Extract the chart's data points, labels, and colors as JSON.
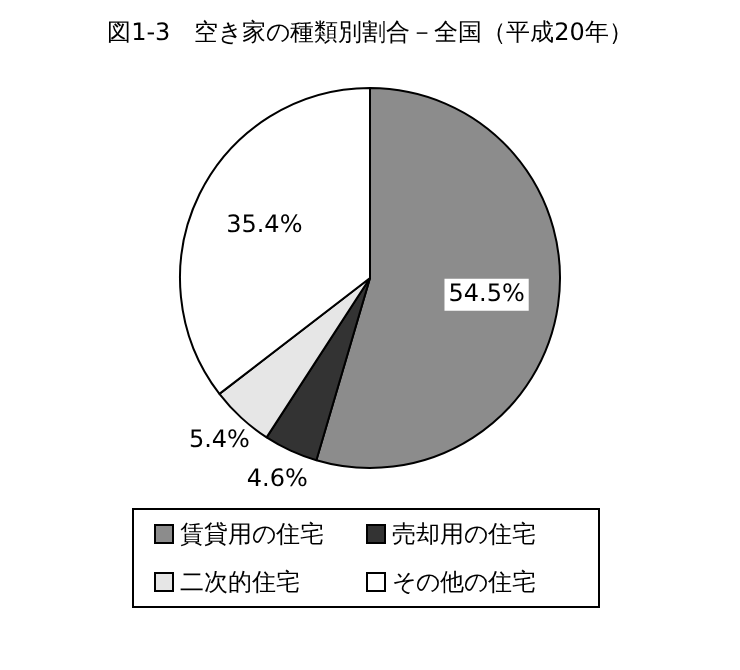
{
  "chart_data": {
    "type": "pie",
    "title": "図1-3　空き家の種類別割合－全国（平成20年）",
    "categories": [
      "賃貸用の住宅",
      "売却用の住宅",
      "二次的住宅",
      "その他の住宅"
    ],
    "values": [
      54.5,
      4.6,
      5.4,
      35.4
    ],
    "colors": [
      "#8c8c8c",
      "#333333",
      "#e6e6e6",
      "#ffffff"
    ],
    "value_labels": [
      "54.5%",
      "4.6%",
      "5.4%",
      "35.4%"
    ],
    "legend": "bottom"
  }
}
